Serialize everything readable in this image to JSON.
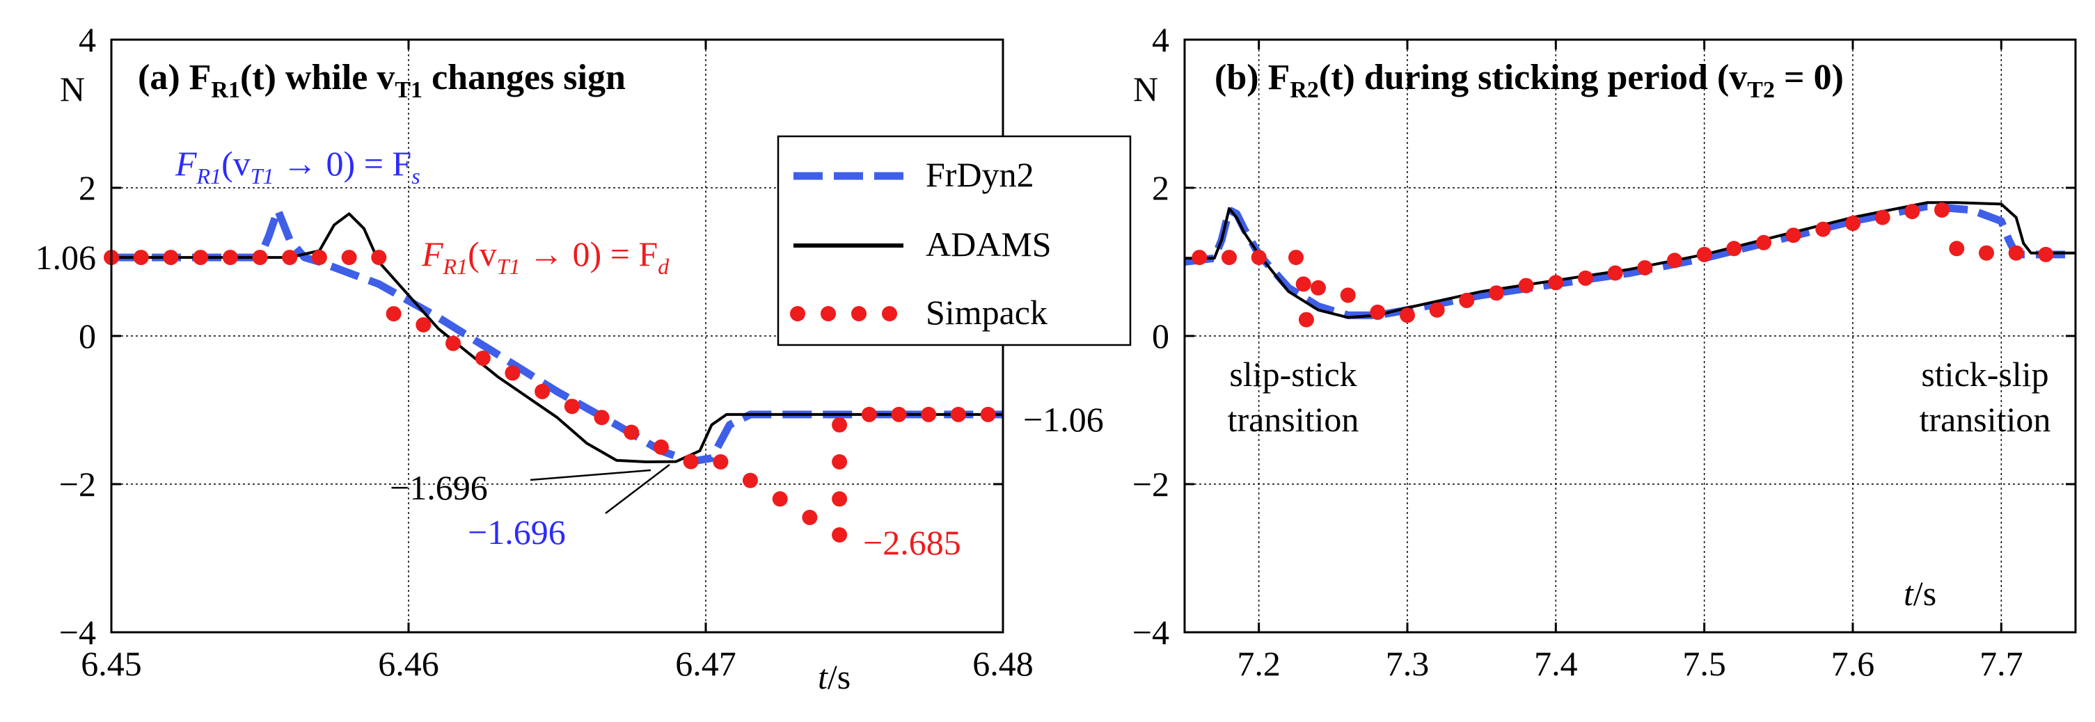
{
  "chart_data": [
    {
      "type": "line",
      "title": "(a) F_R1(t) while v_T1 changes sign",
      "title_parts": {
        "prefix": "(a) ",
        "F": "F",
        "F_sub": "R1",
        "middle": "(t) while ",
        "v": "v",
        "v_sub": "T1",
        "suffix": " changes sign"
      },
      "ylabel": "N",
      "xlabel_t": "t",
      "xlabel_unit": "/s",
      "xlim": [
        6.45,
        6.48
      ],
      "ylim": [
        -4,
        4
      ],
      "xticks": [
        6.45,
        6.46,
        6.47,
        6.48
      ],
      "xtick_labels": [
        "6.45",
        "6.46",
        "6.47",
        "6.48"
      ],
      "yticks": [
        -4,
        -2,
        0,
        2,
        4
      ],
      "ytick_labels": [
        "−4",
        "−2",
        "0",
        "2",
        "4"
      ],
      "extra_ytick": {
        "value": 1.06,
        "label": "1.06"
      },
      "grid": true,
      "legend": {
        "position": "top-right",
        "entries": [
          {
            "name": "FrDyn2",
            "color": "#3f5fe8",
            "style": "dashed"
          },
          {
            "name": "ADAMS",
            "color": "#000000",
            "style": "solid"
          },
          {
            "name": "Simpack",
            "color": "#ee1c1c",
            "style": "dotted"
          }
        ]
      },
      "series": [
        {
          "name": "FrDyn2",
          "color": "#3f5fe8",
          "x": [
            6.45,
            6.455,
            6.4553,
            6.4556,
            6.456,
            6.4565,
            6.457,
            6.459,
            6.461,
            6.463,
            6.465,
            6.467,
            6.4685,
            6.4695,
            6.4702,
            6.4708,
            6.4715,
            6.48
          ],
          "y": [
            1.06,
            1.06,
            1.35,
            1.7,
            1.3,
            1.06,
            1.0,
            0.7,
            0.25,
            -0.25,
            -0.75,
            -1.2,
            -1.55,
            -1.696,
            -1.65,
            -1.2,
            -1.06,
            -1.06
          ]
        },
        {
          "name": "ADAMS",
          "color": "#000000",
          "x": [
            6.45,
            6.456,
            6.457,
            6.4575,
            6.458,
            6.4585,
            6.459,
            6.461,
            6.463,
            6.465,
            6.466,
            6.467,
            6.468,
            6.469,
            6.4698,
            6.4702,
            6.4707,
            6.4715,
            6.48
          ],
          "y": [
            1.06,
            1.06,
            1.15,
            1.5,
            1.65,
            1.45,
            1.0,
            0.1,
            -0.55,
            -1.1,
            -1.45,
            -1.68,
            -1.7,
            -1.696,
            -1.55,
            -1.2,
            -1.06,
            -1.06,
            -1.06
          ]
        },
        {
          "name": "Simpack",
          "color": "#ee1c1c",
          "x": [
            6.45,
            6.451,
            6.452,
            6.453,
            6.454,
            6.455,
            6.456,
            6.457,
            6.458,
            6.459,
            6.4595,
            6.4605,
            6.4615,
            6.4625,
            6.4635,
            6.4645,
            6.4655,
            6.4665,
            6.4675,
            6.4685,
            6.4695,
            6.4705,
            6.4715,
            6.4725,
            6.4735,
            6.4745,
            6.4745,
            6.4745,
            6.4745,
            6.4755,
            6.4765,
            6.4775,
            6.4785,
            6.4795
          ],
          "y": [
            1.06,
            1.06,
            1.06,
            1.06,
            1.06,
            1.06,
            1.06,
            1.06,
            1.06,
            1.06,
            0.3,
            0.15,
            -0.1,
            -0.3,
            -0.5,
            -0.75,
            -0.95,
            -1.1,
            -1.3,
            -1.5,
            -1.696,
            -1.7,
            -1.95,
            -2.2,
            -2.45,
            -2.685,
            -2.2,
            -1.7,
            -1.2,
            -1.06,
            -1.06,
            -1.06,
            -1.06,
            -1.06
          ]
        }
      ],
      "annotations": [
        {
          "text_main": "F",
          "text_sub": "R1",
          "text_rest": "(v",
          "text_sub2": "T1",
          "text_end": " → 0) = F",
          "text_sub3": "s",
          "color": "#2b2bff"
        },
        {
          "text_main": "F",
          "text_sub": "R1",
          "text_rest": "(v",
          "text_sub2": "T1",
          "text_end": " → 0) = F",
          "text_sub3": "d",
          "color": "#ee1c1c"
        },
        {
          "label": "−1.696",
          "color": "#000000"
        },
        {
          "label": "−1.696",
          "color": "#2b2bff"
        },
        {
          "label": "−2.685",
          "color": "#ee1c1c"
        },
        {
          "label": "−1.06",
          "color": "#000000"
        }
      ]
    },
    {
      "type": "line",
      "title": "(b) F_R2(t) during sticking period (v_T2 = 0)",
      "title_parts": {
        "prefix": "(b) ",
        "F": "F",
        "F_sub": "R2",
        "middle": "(t) during sticking period (",
        "v": "v",
        "v_sub": "T2",
        "suffix": " = 0)"
      },
      "ylabel": "N",
      "xlabel_t": "t",
      "xlabel_unit": "/s",
      "xlim": [
        7.15,
        7.75
      ],
      "ylim": [
        -4,
        4
      ],
      "xticks": [
        7.2,
        7.3,
        7.4,
        7.5,
        7.6,
        7.7
      ],
      "xtick_labels": [
        "7.2",
        "7.3",
        "7.4",
        "7.5",
        "7.6",
        "7.7"
      ],
      "yticks": [
        -4,
        -2,
        0,
        2,
        4
      ],
      "ytick_labels": [
        "−4",
        "−2",
        "0",
        "2",
        "4"
      ],
      "grid": true,
      "series": [
        {
          "name": "FrDyn2",
          "color": "#3f5fe8",
          "x": [
            7.15,
            7.17,
            7.175,
            7.18,
            7.185,
            7.19,
            7.2,
            7.22,
            7.24,
            7.26,
            7.28,
            7.3,
            7.35,
            7.4,
            7.45,
            7.5,
            7.55,
            7.6,
            7.65,
            7.68,
            7.7,
            7.705,
            7.71,
            7.75
          ],
          "y": [
            1.0,
            1.05,
            1.3,
            1.7,
            1.65,
            1.45,
            1.1,
            0.65,
            0.4,
            0.28,
            0.28,
            0.35,
            0.55,
            0.7,
            0.85,
            1.05,
            1.3,
            1.55,
            1.75,
            1.7,
            1.55,
            1.3,
            1.1,
            1.1
          ]
        },
        {
          "name": "ADAMS",
          "color": "#000000",
          "x": [
            7.15,
            7.17,
            7.175,
            7.18,
            7.185,
            7.19,
            7.2,
            7.22,
            7.24,
            7.26,
            7.28,
            7.3,
            7.35,
            7.4,
            7.45,
            7.5,
            7.55,
            7.6,
            7.65,
            7.67,
            7.7,
            7.71,
            7.715,
            7.72,
            7.75
          ],
          "y": [
            1.05,
            1.05,
            1.3,
            1.72,
            1.6,
            1.4,
            1.1,
            0.6,
            0.35,
            0.25,
            0.28,
            0.38,
            0.6,
            0.75,
            0.9,
            1.1,
            1.35,
            1.6,
            1.8,
            1.8,
            1.78,
            1.6,
            1.25,
            1.12,
            1.12
          ]
        },
        {
          "name": "Simpack",
          "color": "#ee1c1c",
          "x": [
            7.16,
            7.18,
            7.2,
            7.225,
            7.23,
            7.232,
            7.24,
            7.26,
            7.28,
            7.3,
            7.32,
            7.34,
            7.36,
            7.38,
            7.4,
            7.42,
            7.44,
            7.46,
            7.48,
            7.5,
            7.52,
            7.54,
            7.56,
            7.58,
            7.6,
            7.62,
            7.64,
            7.66,
            7.67,
            7.69,
            7.71,
            7.73
          ],
          "y": [
            1.06,
            1.06,
            1.06,
            1.06,
            0.7,
            0.22,
            0.65,
            0.55,
            0.32,
            0.28,
            0.35,
            0.48,
            0.58,
            0.68,
            0.72,
            0.78,
            0.85,
            0.92,
            1.02,
            1.1,
            1.18,
            1.26,
            1.36,
            1.44,
            1.52,
            1.6,
            1.68,
            1.7,
            1.18,
            1.12,
            1.12,
            1.1
          ]
        }
      ],
      "annotations": [
        {
          "label": "slip-stick",
          "label2": "transition"
        },
        {
          "label": "stick-slip",
          "label2": "transition"
        }
      ]
    }
  ]
}
